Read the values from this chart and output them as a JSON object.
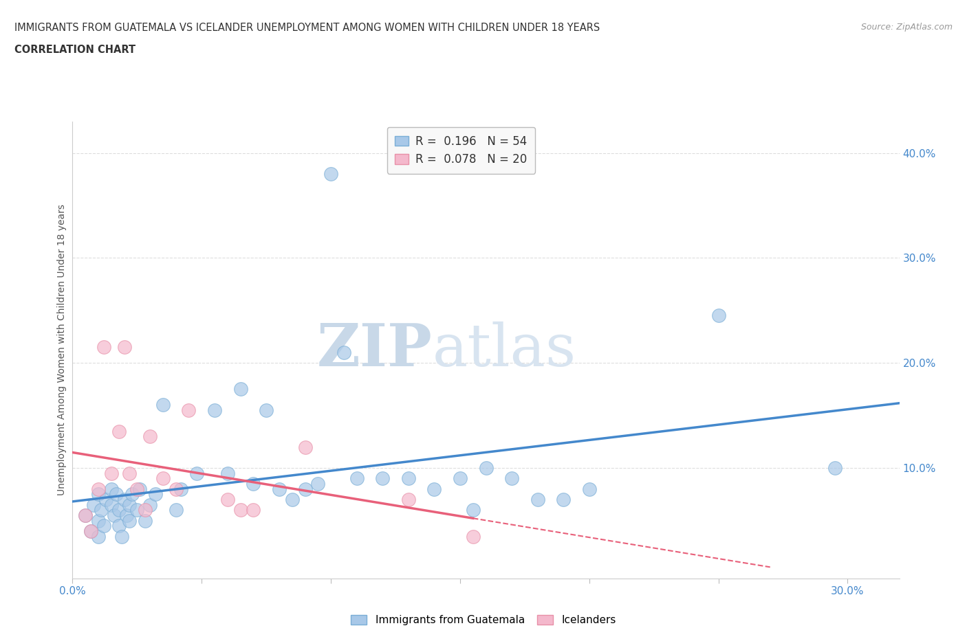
{
  "title_line1": "IMMIGRANTS FROM GUATEMALA VS ICELANDER UNEMPLOYMENT AMONG WOMEN WITH CHILDREN UNDER 18 YEARS",
  "title_line2": "CORRELATION CHART",
  "source_text": "Source: ZipAtlas.com",
  "xlabel": "Immigrants from Guatemala",
  "ylabel": "Unemployment Among Women with Children Under 18 years",
  "xlim": [
    0.0,
    0.32
  ],
  "ylim": [
    -0.005,
    0.43
  ],
  "ytick_right": [
    0.1,
    0.2,
    0.3,
    0.4
  ],
  "ytick_right_labels": [
    "10.0%",
    "20.0%",
    "30.0%",
    "40.0%"
  ],
  "R_blue": 0.196,
  "N_blue": 54,
  "R_pink": 0.078,
  "N_pink": 20,
  "blue_color": "#a8c8e8",
  "pink_color": "#f4b8cc",
  "blue_edge_color": "#7aaed6",
  "pink_edge_color": "#e890a8",
  "blue_line_color": "#4488cc",
  "pink_line_color": "#e8607a",
  "title_color": "#333333",
  "axis_label_color": "#555555",
  "tick_color": "#4488cc",
  "watermark_color": "#d8e4f0",
  "background_color": "#ffffff",
  "blue_scatter_x": [
    0.005,
    0.007,
    0.008,
    0.01,
    0.01,
    0.01,
    0.011,
    0.012,
    0.013,
    0.015,
    0.015,
    0.016,
    0.017,
    0.018,
    0.018,
    0.019,
    0.02,
    0.021,
    0.022,
    0.022,
    0.023,
    0.025,
    0.026,
    0.028,
    0.03,
    0.032,
    0.035,
    0.04,
    0.042,
    0.048,
    0.055,
    0.06,
    0.065,
    0.07,
    0.075,
    0.08,
    0.085,
    0.09,
    0.095,
    0.1,
    0.105,
    0.11,
    0.12,
    0.13,
    0.14,
    0.15,
    0.155,
    0.16,
    0.17,
    0.18,
    0.19,
    0.2,
    0.25,
    0.295
  ],
  "blue_scatter_y": [
    0.055,
    0.04,
    0.065,
    0.075,
    0.05,
    0.035,
    0.06,
    0.045,
    0.07,
    0.08,
    0.065,
    0.055,
    0.075,
    0.06,
    0.045,
    0.035,
    0.07,
    0.055,
    0.065,
    0.05,
    0.075,
    0.06,
    0.08,
    0.05,
    0.065,
    0.075,
    0.16,
    0.06,
    0.08,
    0.095,
    0.155,
    0.095,
    0.175,
    0.085,
    0.155,
    0.08,
    0.07,
    0.08,
    0.085,
    0.38,
    0.21,
    0.09,
    0.09,
    0.09,
    0.08,
    0.09,
    0.06,
    0.1,
    0.09,
    0.07,
    0.07,
    0.08,
    0.245,
    0.1
  ],
  "pink_scatter_x": [
    0.005,
    0.007,
    0.01,
    0.012,
    0.015,
    0.018,
    0.02,
    0.022,
    0.025,
    0.028,
    0.03,
    0.035,
    0.04,
    0.045,
    0.06,
    0.065,
    0.07,
    0.09,
    0.13,
    0.155
  ],
  "pink_scatter_y": [
    0.055,
    0.04,
    0.08,
    0.215,
    0.095,
    0.135,
    0.215,
    0.095,
    0.08,
    0.06,
    0.13,
    0.09,
    0.08,
    0.155,
    0.07,
    0.06,
    0.06,
    0.12,
    0.07,
    0.035
  ],
  "grid_color": "#dddddd",
  "legend_box_color": "#f8f8f8",
  "legend_border_color": "#bbbbbb",
  "label_R_color": "#222222",
  "label_N_color": "#222222",
  "label_value_color": "#4488cc"
}
